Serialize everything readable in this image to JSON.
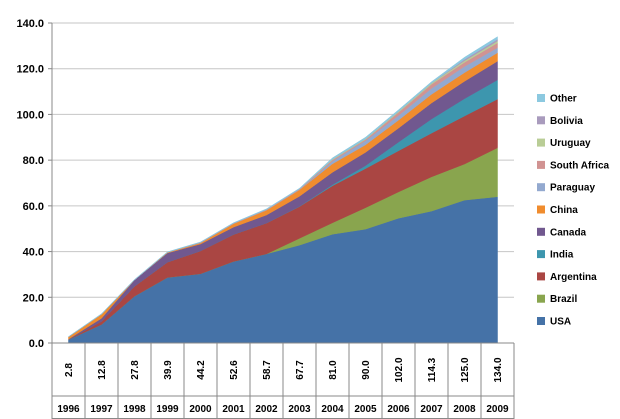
{
  "chart_data": {
    "type": "area",
    "stacked": true,
    "title": "",
    "xlabel": "",
    "ylabel": "",
    "ylim": [
      0,
      140
    ],
    "yticks": [
      "0.0",
      "20.0",
      "40.0",
      "60.0",
      "80.0",
      "100.0",
      "120.0",
      "140.0"
    ],
    "categories": [
      "1996",
      "1997",
      "1998",
      "1999",
      "2000",
      "2001",
      "2002",
      "2003",
      "2004",
      "2005",
      "2006",
      "2007",
      "2008",
      "2009"
    ],
    "totals": [
      "2.8",
      "12.8",
      "27.8",
      "39.9",
      "44.2",
      "52.6",
      "58.7",
      "67.7",
      "81.0",
      "90.0",
      "102.0",
      "114.3",
      "125.0",
      "134.0"
    ],
    "legend_position": "right",
    "series": [
      {
        "name": "USA",
        "color": "#4572a7",
        "values": [
          1.5,
          8.1,
          20.5,
          28.7,
          30.3,
          35.7,
          39.0,
          42.8,
          47.6,
          49.8,
          54.6,
          57.7,
          62.5,
          64.0
        ]
      },
      {
        "name": "Brazil",
        "color": "#89a54e",
        "values": [
          0,
          0,
          0,
          0,
          0,
          0,
          0,
          3.0,
          5.0,
          9.4,
          11.5,
          15.0,
          15.8,
          21.4
        ]
      },
      {
        "name": "Argentina",
        "color": "#aa4643",
        "values": [
          0.1,
          1.4,
          4.3,
          6.7,
          10.0,
          11.8,
          13.5,
          13.9,
          16.2,
          17.1,
          18.0,
          19.1,
          21.0,
          21.3
        ]
      },
      {
        "name": "India",
        "color": "#3d96ae",
        "values": [
          0,
          0,
          0,
          0,
          0,
          0,
          0,
          0.1,
          0.5,
          1.3,
          3.8,
          6.2,
          7.6,
          8.4
        ]
      },
      {
        "name": "Canada",
        "color": "#71588f",
        "values": [
          0.1,
          1.3,
          2.8,
          4.0,
          3.0,
          3.2,
          3.5,
          4.4,
          5.4,
          5.8,
          6.1,
          7.0,
          7.6,
          8.2
        ]
      },
      {
        "name": "China",
        "color": "#f08c2e",
        "values": [
          1.0,
          1.8,
          0,
          0.3,
          0.5,
          1.5,
          2.1,
          2.8,
          3.7,
          3.3,
          3.5,
          3.8,
          3.8,
          3.7
        ]
      },
      {
        "name": "Paraguay",
        "color": "#93a9cf",
        "values": [
          0,
          0,
          0,
          0,
          0,
          0,
          0,
          0,
          1.2,
          1.8,
          2.0,
          2.6,
          2.7,
          2.2
        ]
      },
      {
        "name": "South Africa",
        "color": "#d19392",
        "values": [
          0,
          0,
          0,
          0,
          0.2,
          0.2,
          0.3,
          0.4,
          0.5,
          0.5,
          1.4,
          1.8,
          1.8,
          2.1
        ]
      },
      {
        "name": "Uruguay",
        "color": "#b9cd96",
        "values": [
          0,
          0,
          0,
          0,
          0,
          0,
          0,
          0,
          0.3,
          0.3,
          0.4,
          0.5,
          0.7,
          0.8
        ]
      },
      {
        "name": "Bolivia",
        "color": "#a99bbd",
        "values": [
          0,
          0,
          0,
          0,
          0,
          0,
          0,
          0,
          0,
          0,
          0,
          0,
          0.6,
          0.8
        ]
      },
      {
        "name": "Other",
        "color": "#8cc9e0",
        "values": [
          0.1,
          0.2,
          0.2,
          0.2,
          0.2,
          0.2,
          0.3,
          0.3,
          0.6,
          0.7,
          0.7,
          0.6,
          0.9,
          1.1
        ]
      }
    ]
  }
}
